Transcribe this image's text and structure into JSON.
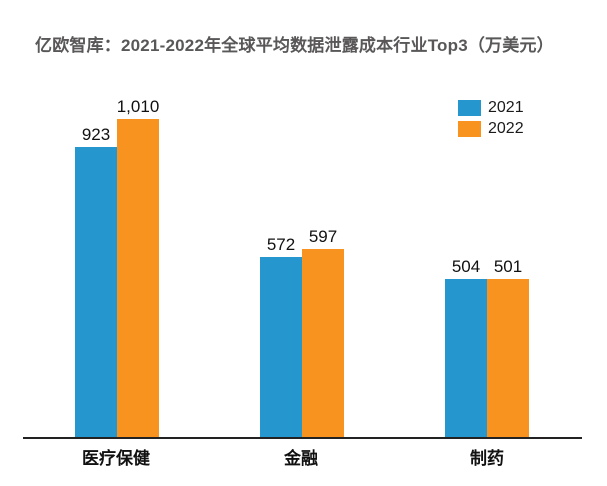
{
  "page": {
    "background_color": "#ffffff"
  },
  "chart_data": {
    "type": "bar",
    "title": "亿欧智库：2021-2022年全球平均数据泄露成本行业Top3（万美元）",
    "title_color": "#595757",
    "categories": [
      "医疗保健",
      "金融",
      "制药"
    ],
    "series": [
      {
        "name": "2021",
        "color": "#2596CE",
        "values": [
          923,
          572,
          504
        ]
      },
      {
        "name": "2022",
        "color": "#F7931E",
        "values": [
          1010,
          597,
          501
        ]
      }
    ],
    "value_label_color": "#111111",
    "axis_line_color": "#222222",
    "ylim": [
      0,
      1050
    ],
    "grid": false,
    "legend_position": "top-right",
    "xlabel": "",
    "ylabel": ""
  }
}
